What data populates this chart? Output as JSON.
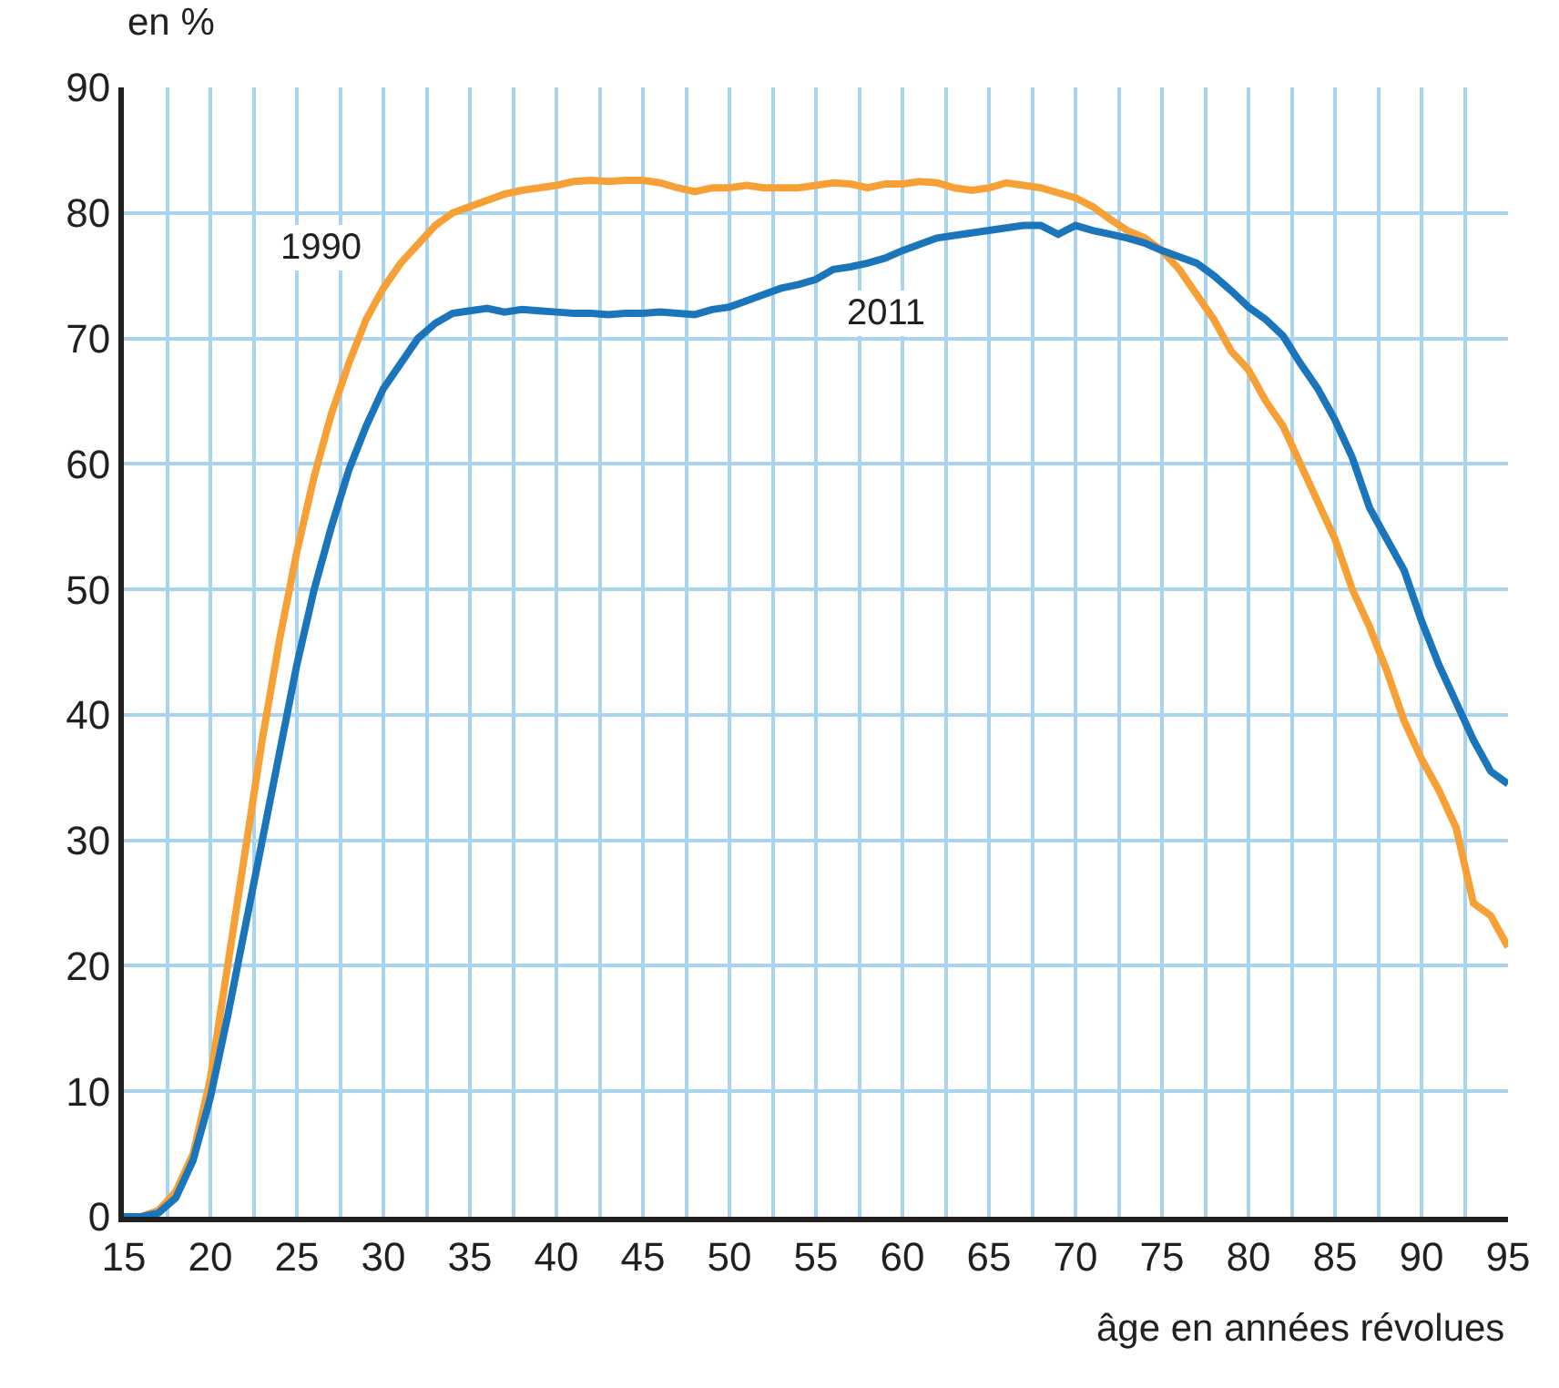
{
  "chart_data": {
    "type": "line",
    "ylabel": "en %",
    "xlabel": "âge en années révolues",
    "x": [
      15,
      16,
      17,
      18,
      19,
      20,
      21,
      22,
      23,
      24,
      25,
      26,
      27,
      28,
      29,
      30,
      31,
      32,
      33,
      34,
      35,
      36,
      37,
      38,
      39,
      40,
      41,
      42,
      43,
      44,
      45,
      46,
      47,
      48,
      49,
      50,
      51,
      52,
      53,
      54,
      55,
      56,
      57,
      58,
      59,
      60,
      61,
      62,
      63,
      64,
      65,
      66,
      67,
      68,
      69,
      70,
      71,
      72,
      73,
      74,
      75,
      76,
      77,
      78,
      79,
      80,
      81,
      82,
      83,
      84,
      85,
      86,
      87,
      88,
      89,
      90,
      91,
      92,
      93,
      94,
      95
    ],
    "series": [
      {
        "name": "1990",
        "color": "#f7a035",
        "values": [
          0,
          0,
          0.5,
          2,
          5,
          11,
          20,
          29,
          38,
          46,
          53,
          59,
          64,
          68,
          71.5,
          74,
          76,
          77.5,
          79,
          80,
          80.5,
          81,
          81.5,
          81.8,
          82,
          82.2,
          82.5,
          82.6,
          82.5,
          82.6,
          82.6,
          82.4,
          82,
          81.7,
          82,
          82,
          82.2,
          82,
          82,
          82,
          82.2,
          82.4,
          82.3,
          82,
          82.3,
          82.3,
          82.5,
          82.4,
          82,
          81.8,
          82,
          82.4,
          82.2,
          82,
          81.6,
          81.2,
          80.5,
          79.5,
          78.6,
          78,
          77,
          75.5,
          73.5,
          71.5,
          69,
          67.5,
          65,
          63,
          60,
          57,
          54,
          50,
          47,
          43.5,
          39.5,
          36.5,
          34,
          31,
          25,
          24,
          21.5
        ]
      },
      {
        "name": "2011",
        "color": "#1a75bb",
        "values": [
          0,
          0,
          0.3,
          1.5,
          4.5,
          9.5,
          16,
          23,
          30,
          37,
          44,
          50,
          55,
          59.5,
          63,
          66,
          68,
          70,
          71.2,
          72,
          72.2,
          72.4,
          72.1,
          72.3,
          72.2,
          72.1,
          72,
          72,
          71.9,
          72,
          72,
          72.1,
          72,
          71.9,
          72.3,
          72.5,
          73,
          73.5,
          74,
          74.3,
          74.7,
          75.5,
          75.7,
          76,
          76.4,
          77,
          77.5,
          78,
          78.2,
          78.4,
          78.6,
          78.8,
          79,
          79,
          78.3,
          79,
          78.6,
          78.3,
          78,
          77.6,
          77,
          76.5,
          76,
          75,
          73.8,
          72.5,
          71.5,
          70.2,
          68,
          66,
          63.5,
          60.5,
          56.5,
          54,
          51.5,
          47.5,
          44,
          41,
          38,
          35.5,
          34.5
        ]
      }
    ],
    "xlim": [
      15,
      95
    ],
    "xticks": [
      15,
      20,
      25,
      30,
      35,
      40,
      45,
      50,
      55,
      60,
      65,
      70,
      75,
      80,
      85,
      90,
      95
    ],
    "ylim": [
      0,
      90
    ],
    "yticks": [
      0,
      10,
      20,
      30,
      40,
      50,
      60,
      70,
      80,
      90
    ],
    "grid": true,
    "legend": false,
    "marker": "none",
    "line_style": "solid"
  }
}
